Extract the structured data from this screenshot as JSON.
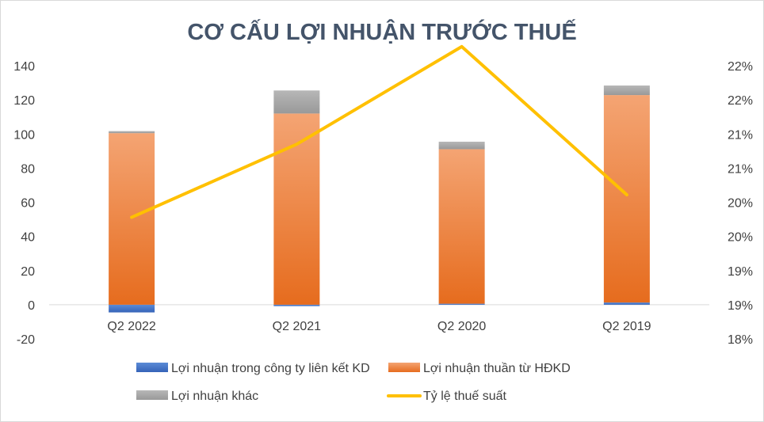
{
  "chart_data": {
    "type": "bar",
    "title": "CƠ CẤU LỢI NHUẬN TRƯỚC THUẾ",
    "categories": [
      "Q2 2022",
      "Q2 2021",
      "Q2 2020",
      "Q2 2019"
    ],
    "stacked": true,
    "series": [
      {
        "name": "Lợi nhuận trong công ty liên kết KD",
        "type": "bar",
        "axis": "left",
        "color": "#4472c4",
        "values": [
          -4.5,
          -0.8,
          0.6,
          1.3
        ]
      },
      {
        "name": "Lợi nhuận thuần từ HĐKD",
        "type": "bar",
        "axis": "left",
        "color": "#ed7d31",
        "values": [
          100.5,
          112,
          90.5,
          121.5
        ]
      },
      {
        "name": "Lợi nhuận khác",
        "type": "bar",
        "axis": "left",
        "color": "#a5a5a5",
        "values": [
          1.2,
          13.5,
          4.4,
          5.6
        ]
      },
      {
        "name": "Tỷ lệ thuế suất",
        "type": "line",
        "axis": "right",
        "color": "#ffc000",
        "values": [
          0.1978,
          0.2085,
          0.2228,
          0.2011
        ]
      }
    ],
    "y_left": {
      "min": -20,
      "max": 140,
      "step": 20,
      "ticks": [
        "-20",
        "0",
        "20",
        "40",
        "60",
        "80",
        "100",
        "120",
        "140"
      ]
    },
    "y_right": {
      "min": 0.18,
      "max": 0.22,
      "ticks": [
        "18%",
        "19%",
        "19%",
        "20%",
        "20%",
        "21%",
        "21%",
        "22%",
        "22%"
      ]
    },
    "grid": false,
    "legend_position": "bottom"
  }
}
